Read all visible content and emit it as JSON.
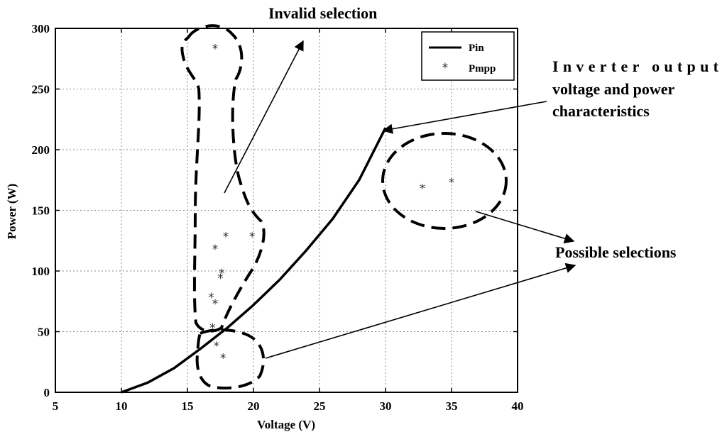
{
  "chart_data": {
    "type": "line",
    "title": "",
    "xlabel": "Voltage (V)",
    "ylabel": "Power (W)",
    "xlim": [
      5,
      40
    ],
    "ylim": [
      0,
      300
    ],
    "xticks": [
      5,
      10,
      15,
      20,
      25,
      30,
      35,
      40
    ],
    "yticks": [
      0,
      50,
      100,
      150,
      200,
      250,
      300
    ],
    "grid": true,
    "legend_position": "top-right",
    "series": [
      {
        "name": "Pin",
        "style": "solid-line",
        "color": "#000000",
        "x": [
          10,
          12,
          14,
          16,
          18,
          20,
          22,
          24,
          26,
          28,
          30
        ],
        "y": [
          0,
          8,
          20,
          36,
          53,
          72,
          93,
          117,
          143,
          175,
          218
        ]
      },
      {
        "name": "Pmpp",
        "style": "asterisk",
        "color": "#333333",
        "x": [
          17.1,
          17.1,
          17.9,
          19.9,
          17.6,
          17.5,
          16.8,
          17.1,
          16.9,
          17.2,
          17.7,
          32.8,
          35.0
        ],
        "y": [
          285,
          120,
          130,
          130,
          100,
          96,
          80,
          75,
          55,
          40,
          30,
          170,
          175
        ]
      }
    ],
    "annotations": [
      {
        "id": "invalid",
        "text": "Invalid selection"
      },
      {
        "id": "inverter",
        "lines": [
          "Inverter output",
          "voltage and power",
          "characteristics"
        ]
      },
      {
        "id": "possible",
        "text": "Possible selections"
      }
    ]
  }
}
